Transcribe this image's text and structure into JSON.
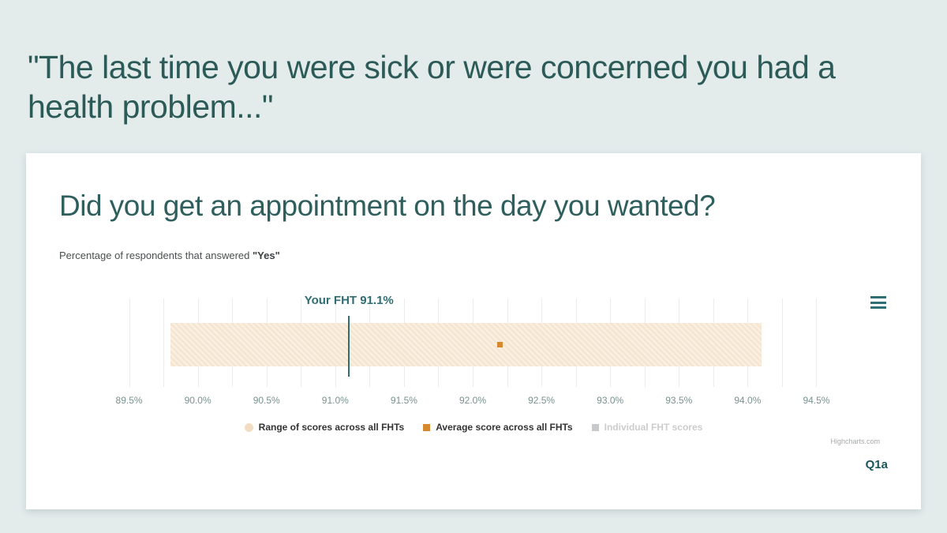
{
  "page": {
    "heading": "\"The last time you were sick or were concerned you had a health problem...\"",
    "background_color": "#e3ebeb",
    "heading_color": "#2b5a57"
  },
  "card": {
    "title": "Did you get an appointment on the day you wanted?",
    "subtitle_prefix": "Percentage of respondents that answered ",
    "subtitle_bold": "\"Yes\"",
    "credits": "Highcharts.com",
    "question_label": "Q1a",
    "menu_icon": "hamburger-menu-icon"
  },
  "chart_data": {
    "type": "bar",
    "subtype": "horizontal-range-with-markers",
    "title": "Did you get an appointment on the day you wanted?",
    "subtitle": "Percentage of respondents that answered \"Yes\"",
    "axis": {
      "min": 89.25,
      "max": 94.75,
      "tick_interval": 0.5,
      "minor_tick_interval": 0.25,
      "tick_values": [
        89.5,
        90.0,
        90.5,
        91.0,
        91.5,
        92.0,
        92.5,
        93.0,
        93.5,
        94.0,
        94.5
      ],
      "tick_labels": [
        "89.5%",
        "90.0%",
        "90.5%",
        "91.0%",
        "91.5%",
        "92.0%",
        "92.5%",
        "93.0%",
        "93.5%",
        "94.0%",
        "94.5%"
      ],
      "grid": true
    },
    "range": {
      "low": 89.8,
      "high": 94.1,
      "color": "#f6e5d0"
    },
    "average": {
      "value": 92.2,
      "color": "#d6882f"
    },
    "your_fht": {
      "value": 91.1,
      "label": "Your FHT 91.1%",
      "color": "#2e6e73"
    },
    "legend": [
      {
        "label": "Range of scores across all FHTs",
        "marker": "circle",
        "color": "#f2ddc2",
        "enabled": true
      },
      {
        "label": "Average score across all FHTs",
        "marker": "square",
        "color": "#d6882f",
        "enabled": true
      },
      {
        "label": "Individual FHT scores",
        "marker": "square",
        "color": "#c6cacc",
        "enabled": false
      }
    ],
    "legend_position": "bottom-center"
  }
}
